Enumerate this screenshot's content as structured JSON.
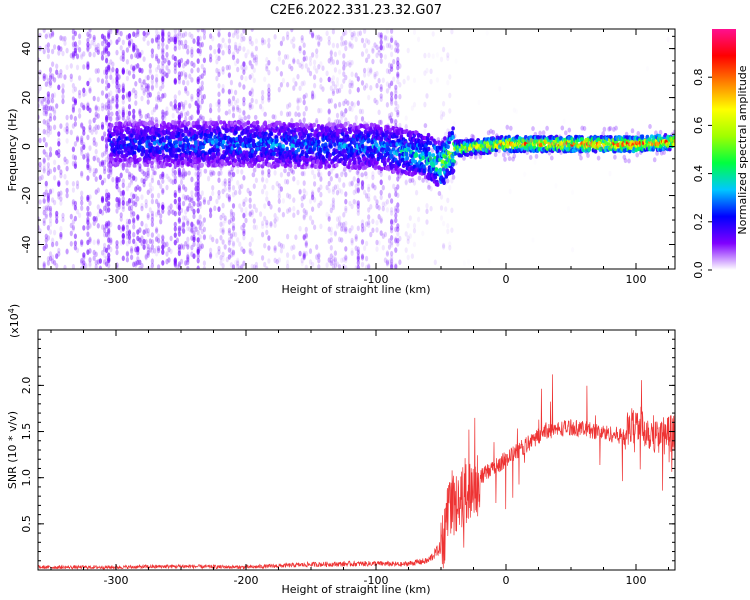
{
  "figure": {
    "title": "C2E6.2022.331.23.32.G07"
  },
  "colors": {
    "snr_line": "#ee3333",
    "spectrum_base": "#7711ff",
    "colormap": [
      "#ffffff",
      "#7f00ff",
      "#0000ff",
      "#00c8ff",
      "#00ff40",
      "#a0ff00",
      "#ffff00",
      "#ff8000",
      "#ff0000",
      "#ff1090"
    ]
  },
  "chart_data": [
    {
      "type": "heatmap",
      "title": "",
      "xlabel": "Height of straight line (km)",
      "ylabel": "Frequency (Hz)",
      "xlim": [
        -360,
        130
      ],
      "ylim": [
        -50,
        48
      ],
      "x_ticks": [
        -300,
        -200,
        -100,
        0,
        100
      ],
      "x_tick_labels": [
        "-300",
        "-200",
        "-100",
        "0",
        "100"
      ],
      "y_ticks": [
        -40,
        -20,
        0,
        20,
        40
      ],
      "y_tick_labels": [
        "-40",
        "-20",
        "0",
        "20",
        "40"
      ],
      "colorbar": {
        "label": "Normalized spectral amplitude",
        "range": [
          0.0,
          1.0
        ],
        "ticks": [
          0.0,
          0.2,
          0.4,
          0.6,
          0.8
        ],
        "tick_labels": [
          "0.0",
          "0.2",
          "0.4",
          "0.6",
          "0.8"
        ]
      },
      "trace": {
        "description_points_x": [
          -300,
          -200,
          -100,
          -80,
          -60,
          -50,
          -40,
          -20,
          0,
          50,
          100,
          130
        ],
        "frequency_hz": [
          1,
          1,
          0,
          -2,
          -4,
          -8,
          -1,
          0,
          1,
          1,
          1,
          2
        ],
        "amplitude": [
          0.25,
          0.3,
          0.3,
          0.35,
          0.4,
          0.5,
          0.6,
          0.65,
          0.75,
          0.8,
          0.85,
          0.8
        ]
      },
      "grid": false
    },
    {
      "type": "line",
      "title": "",
      "xlabel": "Height of straight line (km)",
      "ylabel": "SNR (10 * v/v)",
      "y_scale_label": "(x10",
      "y_scale_exponent": "4",
      "y_scale_suffix": ")",
      "xlim": [
        -360,
        130
      ],
      "ylim": [
        0,
        2.6
      ],
      "x_ticks": [
        -300,
        -200,
        -100,
        0,
        100
      ],
      "x_tick_labels": [
        "-300",
        "-200",
        "-100",
        "0",
        "100"
      ],
      "y_ticks": [
        0.5,
        1.0,
        1.5,
        2.0
      ],
      "y_tick_labels": [
        "0.5",
        "1.0",
        "1.5",
        "2.0"
      ],
      "series": [
        {
          "x": [
            -360,
            -300,
            -250,
            -200,
            -150,
            -100,
            -80,
            -60,
            -50,
            -45,
            -40,
            -35,
            -30,
            -20,
            -10,
            0,
            10,
            20,
            30,
            50,
            70,
            90,
            100,
            110,
            120,
            130
          ],
          "y": [
            0.03,
            0.03,
            0.04,
            0.03,
            0.06,
            0.07,
            0.06,
            0.1,
            0.25,
            0.55,
            0.7,
            0.75,
            0.85,
            1.0,
            1.1,
            1.2,
            1.3,
            1.4,
            1.5,
            1.55,
            1.5,
            1.45,
            1.6,
            1.5,
            1.45,
            1.5
          ]
        }
      ],
      "grid": false
    }
  ]
}
